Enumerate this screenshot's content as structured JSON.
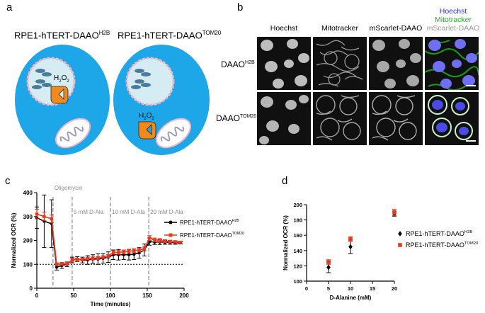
{
  "panels": {
    "a": "a",
    "b": "b",
    "c": "c",
    "d": "d"
  },
  "panel_a": {
    "cell1": {
      "title": "RPE1-hTERT-DAAO",
      "sup": "H2B",
      "h2o2": "H",
      "h2o2_sub": "2",
      "h2o2_mid": "O",
      "h2o2_sub2": "2"
    },
    "cell2": {
      "title": "RPE1-hTERT-DAAO",
      "sup": "TOM20",
      "h2o2": "H",
      "h2o2_sub": "2",
      "h2o2_mid": "O",
      "h2o2_sub2": "2"
    },
    "colors": {
      "cytoplasm": "#1ea7e8",
      "membrane": "#e6b8c8",
      "nucleus": "#d6ecf3",
      "enzyme": "#f08a1c",
      "dna": "#4a7b9d"
    }
  },
  "panel_b": {
    "columns": [
      "Hoechst",
      "Mitotracker",
      "mScarlet-DAAO"
    ],
    "merge_labels": [
      {
        "text": "Hoechst",
        "color": "#2d2df0"
      },
      {
        "text": "Mitotracker",
        "color": "#22b022"
      },
      {
        "text": "mScarlet-DAAO",
        "color": "#9a9a9a"
      }
    ],
    "rows": [
      {
        "label": "DAAO",
        "sup": "H2B"
      },
      {
        "label": "DAAO",
        "sup": "TOM20"
      }
    ]
  },
  "chart_data": [
    {
      "type": "line",
      "xlabel": "Time (minutes)",
      "ylabel": "Normalized OCR (%)",
      "xlim": [
        0,
        200
      ],
      "ylim": [
        0,
        400
      ],
      "xticks": [
        0,
        50,
        100,
        150,
        200
      ],
      "yticks": [
        0,
        100,
        200,
        300,
        400
      ],
      "baseline": 100,
      "annotations": [
        {
          "text": "Oligomycin",
          "x": 22
        },
        {
          "text": "5 mM D-Ala",
          "x": 48
        },
        {
          "text": "10 mM D-Ala",
          "x": 100
        },
        {
          "text": "20 mM D-Ala",
          "x": 152
        }
      ],
      "legend": "right",
      "series": [
        {
          "name": "RPE1-hTERT-DAAO",
          "sup": "H2B",
          "color": "#000000",
          "marker": "circle",
          "x": [
            0,
            10,
            20,
            27,
            34,
            41,
            48,
            55,
            62,
            69,
            76,
            83,
            90,
            97,
            104,
            111,
            118,
            125,
            132,
            139,
            146,
            153,
            160,
            167,
            174,
            181,
            188,
            195
          ],
          "y": [
            295,
            280,
            270,
            88,
            95,
            100,
            118,
            122,
            118,
            118,
            122,
            122,
            125,
            130,
            140,
            140,
            140,
            140,
            142,
            148,
            160,
            195,
            193,
            193,
            192,
            192,
            190,
            190
          ],
          "err": [
            45,
            110,
            100,
            12,
            12,
            10,
            12,
            10,
            12,
            18,
            18,
            22,
            20,
            22,
            20,
            22,
            20,
            22,
            22,
            22,
            25,
            15,
            10,
            10,
            8,
            8,
            6,
            5
          ]
        },
        {
          "name": "RPE1-hTERT-DAAO",
          "sup": "TOM20",
          "color": "#e8391e",
          "marker": "square",
          "x": [
            0,
            10,
            20,
            27,
            34,
            41,
            48,
            55,
            62,
            69,
            76,
            83,
            90,
            97,
            104,
            111,
            118,
            125,
            132,
            139,
            146,
            153,
            160,
            167,
            174,
            181,
            188,
            195
          ],
          "y": [
            310,
            300,
            290,
            100,
            102,
            103,
            118,
            120,
            120,
            124,
            125,
            126,
            130,
            135,
            150,
            150,
            152,
            155,
            157,
            160,
            165,
            210,
            202,
            200,
            197,
            195,
            194,
            192
          ],
          "err": [
            20,
            18,
            16,
            6,
            6,
            6,
            8,
            6,
            6,
            6,
            6,
            6,
            6,
            6,
            8,
            8,
            8,
            8,
            8,
            8,
            8,
            10,
            8,
            8,
            6,
            6,
            5,
            5
          ]
        }
      ]
    },
    {
      "type": "scatter",
      "xlabel": "D-Alanine (mM)",
      "ylabel": "Normalized OCR (%)",
      "xlim": [
        0,
        20
      ],
      "ylim": [
        100,
        200
      ],
      "xticks": [
        0,
        5,
        10,
        15,
        20
      ],
      "yticks": [
        100,
        120,
        140,
        160,
        180,
        200
      ],
      "legend": "right",
      "series": [
        {
          "name": "RPE1-hTERT-DAAO",
          "sup": "H2B",
          "color": "#000000",
          "marker": "diamond",
          "x": [
            5,
            10,
            20
          ],
          "y": [
            118,
            145,
            188
          ],
          "err": [
            7,
            9,
            3
          ]
        },
        {
          "name": "RPE1-hTERT-DAAO",
          "sup": "TOM20",
          "color": "#e8391e",
          "marker": "square",
          "x": [
            5,
            10,
            20
          ],
          "y": [
            125,
            155,
            190
          ],
          "err": [
            3,
            3,
            4
          ]
        }
      ]
    }
  ]
}
